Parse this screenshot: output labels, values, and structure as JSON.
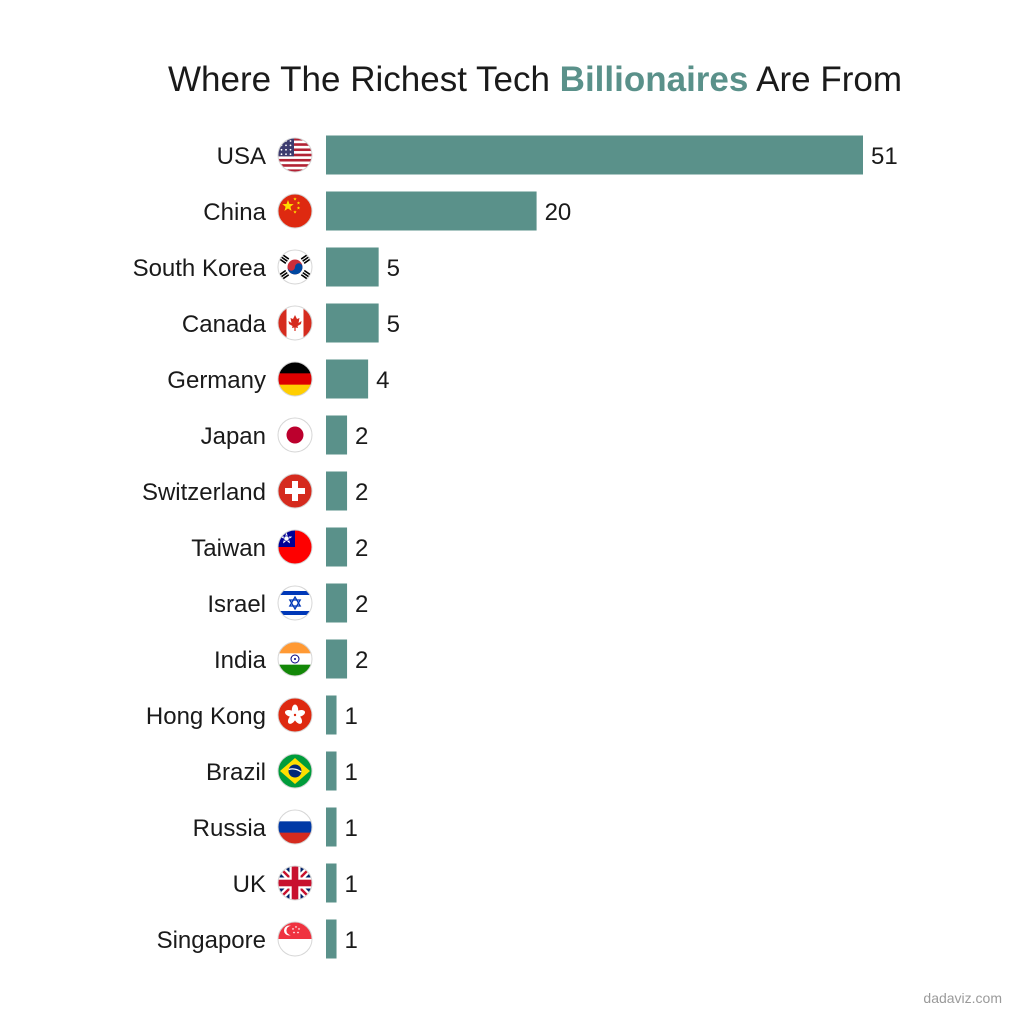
{
  "chart_data": {
    "type": "bar",
    "orientation": "horizontal",
    "title_parts": [
      "Where The Richest Tech ",
      "Billionaires",
      " Are From"
    ],
    "categories": [
      "USA",
      "China",
      "South Korea",
      "Canada",
      "Germany",
      "Japan",
      "Switzerland",
      "Taiwan",
      "Israel",
      "India",
      "Hong Kong",
      "Brazil",
      "Russia",
      "UK",
      "Singapore"
    ],
    "values": [
      51,
      20,
      5,
      5,
      4,
      2,
      2,
      2,
      2,
      2,
      1,
      1,
      1,
      1,
      1
    ],
    "flag_icons": [
      "usa-flag-icon",
      "china-flag-icon",
      "south-korea-flag-icon",
      "canada-flag-icon",
      "germany-flag-icon",
      "japan-flag-icon",
      "switzerland-flag-icon",
      "taiwan-flag-icon",
      "israel-flag-icon",
      "india-flag-icon",
      "hong-kong-flag-icon",
      "brazil-flag-icon",
      "russia-flag-icon",
      "uk-flag-icon",
      "singapore-flag-icon"
    ],
    "xlim": [
      0,
      51
    ],
    "grid": false,
    "legend": "none",
    "bar_color": "#5a918a",
    "title_highlight_color": "#5a918a"
  },
  "source": "dadaviz.com"
}
